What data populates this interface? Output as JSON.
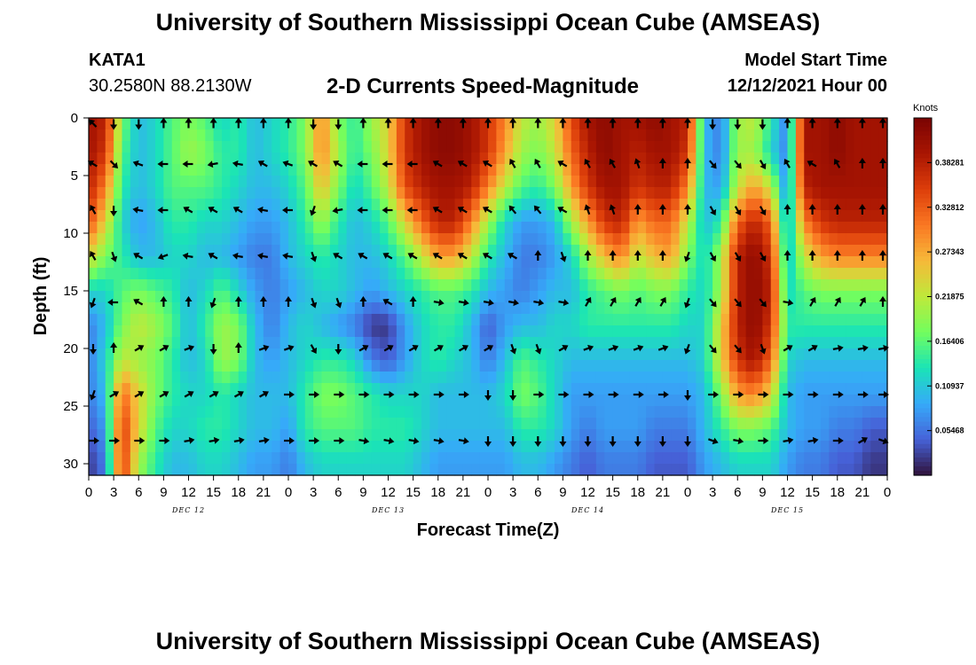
{
  "header": {
    "title": "University of Southern Mississippi Ocean Cube (AMSEAS)",
    "station": "KATA1",
    "coords": "30.2580N  88.2130W",
    "subtitle": "2-D Currents Speed-Magnitude",
    "start_label": "Model Start Time",
    "start_value": "12/12/2021 Hour 00"
  },
  "footer": {
    "title": "University of Southern Mississippi Ocean Cube (AMSEAS)"
  },
  "colors": {
    "low": "#30123b",
    "mid": "#a4fc3c",
    "high": "#7a0403"
  },
  "chart_data": {
    "type": "heatmap",
    "title": "2-D Currents Speed-Magnitude",
    "xlabel": "Forecast Time(Z)",
    "ylabel": "Depth (ft)",
    "x_ticks": [
      "0",
      "3",
      "6",
      "9",
      "12",
      "15",
      "18",
      "21",
      "0",
      "3",
      "6",
      "9",
      "12",
      "15",
      "18",
      "21",
      "0",
      "3",
      "6",
      "9",
      "12",
      "15",
      "18",
      "21",
      "0",
      "3",
      "6",
      "9",
      "12",
      "15",
      "18",
      "21",
      "0"
    ],
    "x_range_hours": [
      0,
      96
    ],
    "y_ticks": [
      0,
      5,
      10,
      15,
      20,
      25,
      30
    ],
    "y_range_ft": [
      0,
      31
    ],
    "day_labels": [
      "DEC 12",
      "DEC 13",
      "DEC 14",
      "DEC 15"
    ],
    "colorbar": {
      "unit": "Knots",
      "ticks": [
        "0.05468",
        "0.10937",
        "0.16406",
        "0.21875",
        "0.27343",
        "0.32812",
        "0.38281"
      ],
      "range": [
        0,
        0.4375
      ]
    },
    "arrow_rows_ft": [
      0.5,
      4,
      8,
      12,
      16,
      20,
      24,
      28
    ],
    "arrow_cols_hours": [
      0,
      3,
      6,
      9,
      12,
      15,
      18,
      21,
      24,
      27,
      30,
      33,
      36,
      39,
      42,
      45,
      48,
      51,
      54,
      57,
      60,
      63,
      66,
      69,
      72,
      75,
      78,
      81,
      84,
      87,
      90,
      93,
      96
    ],
    "arrow_directions_deg": [
      [
        315,
        180,
        180,
        0,
        0,
        0,
        0,
        0,
        0,
        180,
        180,
        0,
        0,
        0,
        0,
        0,
        0,
        0,
        0,
        0,
        0,
        0,
        0,
        0,
        0,
        180,
        180,
        180,
        0,
        0,
        0,
        0,
        0
      ],
      [
        300,
        135,
        290,
        270,
        270,
        260,
        280,
        300,
        290,
        300,
        300,
        270,
        270,
        270,
        300,
        300,
        300,
        330,
        330,
        300,
        330,
        330,
        340,
        0,
        0,
        140,
        140,
        150,
        330,
        300,
        330,
        0,
        0
      ],
      [
        330,
        180,
        280,
        270,
        300,
        300,
        300,
        280,
        270,
        200,
        260,
        270,
        270,
        270,
        300,
        300,
        300,
        320,
        320,
        300,
        340,
        340,
        0,
        0,
        0,
        150,
        150,
        150,
        0,
        0,
        0,
        0,
        0
      ],
      [
        330,
        160,
        300,
        250,
        280,
        300,
        280,
        280,
        280,
        160,
        300,
        300,
        300,
        300,
        300,
        300,
        300,
        300,
        0,
        160,
        0,
        0,
        0,
        0,
        200,
        150,
        150,
        150,
        0,
        0,
        0,
        0,
        0
      ],
      [
        200,
        270,
        300,
        0,
        0,
        200,
        0,
        0,
        0,
        160,
        160,
        0,
        300,
        0,
        100,
        100,
        100,
        100,
        100,
        100,
        30,
        30,
        30,
        30,
        200,
        140,
        140,
        140,
        100,
        30,
        30,
        30,
        0
      ],
      [
        180,
        0,
        60,
        60,
        70,
        180,
        0,
        70,
        70,
        150,
        180,
        60,
        60,
        60,
        60,
        60,
        60,
        160,
        160,
        60,
        70,
        70,
        70,
        70,
        200,
        140,
        140,
        160,
        60,
        60,
        80,
        80,
        80
      ],
      [
        200,
        60,
        60,
        60,
        60,
        60,
        60,
        60,
        90,
        90,
        90,
        90,
        90,
        90,
        90,
        90,
        180,
        180,
        90,
        90,
        90,
        90,
        90,
        90,
        180,
        90,
        90,
        90,
        90,
        90,
        90,
        90,
        90
      ],
      [
        90,
        90,
        90,
        90,
        80,
        80,
        80,
        80,
        90,
        90,
        90,
        100,
        100,
        100,
        100,
        100,
        180,
        180,
        180,
        180,
        180,
        180,
        180,
        180,
        180,
        110,
        100,
        90,
        80,
        80,
        90,
        60,
        110
      ]
    ],
    "speed_field": {
      "columns_hours": [
        0,
        2,
        4,
        6,
        8,
        10,
        12,
        14,
        16,
        18,
        20,
        22,
        24,
        26,
        28,
        30,
        32,
        34,
        36,
        38,
        40,
        42,
        44,
        46,
        48,
        50,
        52,
        54,
        56,
        58,
        60,
        62,
        64,
        66,
        68,
        70,
        72,
        74,
        76,
        78,
        80,
        82,
        84,
        86,
        88,
        90,
        92,
        94,
        96
      ],
      "rows_ft": [
        0,
        3,
        6,
        9,
        12,
        15,
        18,
        21,
        24,
        27,
        30
      ],
      "values_knots": [
        [
          0.4,
          0.38,
          0.18,
          0.1,
          0.12,
          0.16,
          0.18,
          0.16,
          0.12,
          0.14,
          0.1,
          0.12,
          0.14,
          0.18,
          0.3,
          0.18,
          0.14,
          0.2,
          0.24,
          0.36,
          0.4,
          0.42,
          0.42,
          0.4,
          0.36,
          0.3,
          0.22,
          0.2,
          0.24,
          0.34,
          0.4,
          0.42,
          0.4,
          0.4,
          0.42,
          0.4,
          0.38,
          0.1,
          0.06,
          0.2,
          0.22,
          0.14,
          0.06,
          0.4,
          0.4,
          0.42,
          0.4,
          0.4,
          0.4
        ],
        [
          0.4,
          0.36,
          0.16,
          0.1,
          0.12,
          0.16,
          0.2,
          0.18,
          0.14,
          0.14,
          0.1,
          0.12,
          0.14,
          0.18,
          0.3,
          0.2,
          0.14,
          0.18,
          0.24,
          0.36,
          0.4,
          0.42,
          0.42,
          0.4,
          0.36,
          0.28,
          0.2,
          0.18,
          0.22,
          0.32,
          0.38,
          0.42,
          0.4,
          0.38,
          0.4,
          0.4,
          0.36,
          0.1,
          0.06,
          0.2,
          0.2,
          0.12,
          0.06,
          0.4,
          0.4,
          0.42,
          0.4,
          0.4,
          0.4
        ],
        [
          0.38,
          0.3,
          0.14,
          0.1,
          0.12,
          0.16,
          0.16,
          0.16,
          0.14,
          0.12,
          0.1,
          0.1,
          0.12,
          0.16,
          0.26,
          0.18,
          0.12,
          0.16,
          0.22,
          0.34,
          0.38,
          0.4,
          0.4,
          0.38,
          0.3,
          0.22,
          0.16,
          0.14,
          0.18,
          0.28,
          0.36,
          0.4,
          0.4,
          0.36,
          0.38,
          0.38,
          0.3,
          0.1,
          0.08,
          0.22,
          0.28,
          0.22,
          0.06,
          0.38,
          0.4,
          0.4,
          0.4,
          0.4,
          0.4
        ],
        [
          0.34,
          0.24,
          0.12,
          0.08,
          0.1,
          0.14,
          0.14,
          0.12,
          0.12,
          0.1,
          0.08,
          0.08,
          0.1,
          0.14,
          0.2,
          0.14,
          0.1,
          0.12,
          0.16,
          0.24,
          0.32,
          0.38,
          0.38,
          0.3,
          0.2,
          0.12,
          0.08,
          0.08,
          0.1,
          0.2,
          0.28,
          0.36,
          0.38,
          0.28,
          0.32,
          0.32,
          0.22,
          0.1,
          0.14,
          0.32,
          0.38,
          0.32,
          0.08,
          0.3,
          0.36,
          0.38,
          0.38,
          0.38,
          0.38
        ],
        [
          0.24,
          0.18,
          0.14,
          0.1,
          0.1,
          0.12,
          0.12,
          0.1,
          0.1,
          0.08,
          0.06,
          0.06,
          0.1,
          0.12,
          0.14,
          0.12,
          0.1,
          0.1,
          0.12,
          0.16,
          0.22,
          0.28,
          0.28,
          0.22,
          0.14,
          0.1,
          0.06,
          0.06,
          0.08,
          0.12,
          0.2,
          0.26,
          0.3,
          0.22,
          0.26,
          0.28,
          0.18,
          0.12,
          0.2,
          0.38,
          0.42,
          0.36,
          0.1,
          0.22,
          0.28,
          0.3,
          0.3,
          0.3,
          0.3
        ],
        [
          0.12,
          0.12,
          0.16,
          0.18,
          0.16,
          0.14,
          0.1,
          0.12,
          0.16,
          0.12,
          0.08,
          0.06,
          0.08,
          0.1,
          0.12,
          0.12,
          0.1,
          0.08,
          0.1,
          0.12,
          0.14,
          0.16,
          0.16,
          0.14,
          0.1,
          0.08,
          0.06,
          0.08,
          0.1,
          0.1,
          0.14,
          0.16,
          0.18,
          0.16,
          0.18,
          0.18,
          0.14,
          0.12,
          0.2,
          0.38,
          0.42,
          0.38,
          0.12,
          0.16,
          0.18,
          0.18,
          0.18,
          0.18,
          0.18
        ],
        [
          0.06,
          0.1,
          0.18,
          0.22,
          0.2,
          0.16,
          0.1,
          0.14,
          0.2,
          0.18,
          0.1,
          0.06,
          0.1,
          0.12,
          0.1,
          0.08,
          0.06,
          0.02,
          0.02,
          0.08,
          0.12,
          0.14,
          0.14,
          0.1,
          0.04,
          0.08,
          0.1,
          0.1,
          0.12,
          0.12,
          0.14,
          0.14,
          0.14,
          0.14,
          0.14,
          0.14,
          0.12,
          0.12,
          0.24,
          0.38,
          0.42,
          0.36,
          0.14,
          0.14,
          0.14,
          0.14,
          0.14,
          0.14,
          0.14
        ],
        [
          0.06,
          0.12,
          0.22,
          0.2,
          0.18,
          0.14,
          0.1,
          0.12,
          0.2,
          0.18,
          0.1,
          0.08,
          0.1,
          0.12,
          0.14,
          0.14,
          0.12,
          0.06,
          0.04,
          0.08,
          0.12,
          0.14,
          0.12,
          0.1,
          0.06,
          0.1,
          0.16,
          0.14,
          0.12,
          0.1,
          0.1,
          0.1,
          0.1,
          0.1,
          0.1,
          0.1,
          0.1,
          0.12,
          0.24,
          0.36,
          0.4,
          0.32,
          0.12,
          0.1,
          0.1,
          0.1,
          0.1,
          0.1,
          0.1
        ],
        [
          0.06,
          0.1,
          0.32,
          0.24,
          0.18,
          0.14,
          0.12,
          0.12,
          0.14,
          0.12,
          0.1,
          0.1,
          0.1,
          0.14,
          0.18,
          0.18,
          0.16,
          0.14,
          0.12,
          0.12,
          0.12,
          0.1,
          0.1,
          0.1,
          0.1,
          0.12,
          0.18,
          0.16,
          0.12,
          0.08,
          0.08,
          0.08,
          0.08,
          0.08,
          0.08,
          0.08,
          0.08,
          0.1,
          0.18,
          0.28,
          0.3,
          0.24,
          0.1,
          0.08,
          0.08,
          0.08,
          0.08,
          0.08,
          0.08
        ],
        [
          0.04,
          0.08,
          0.36,
          0.24,
          0.16,
          0.12,
          0.12,
          0.14,
          0.14,
          0.12,
          0.1,
          0.1,
          0.08,
          0.14,
          0.16,
          0.16,
          0.16,
          0.14,
          0.14,
          0.14,
          0.12,
          0.1,
          0.1,
          0.1,
          0.1,
          0.1,
          0.14,
          0.14,
          0.12,
          0.08,
          0.06,
          0.08,
          0.08,
          0.08,
          0.06,
          0.06,
          0.06,
          0.1,
          0.14,
          0.18,
          0.18,
          0.16,
          0.1,
          0.08,
          0.08,
          0.06,
          0.06,
          0.04,
          0.04
        ],
        [
          0.02,
          0.06,
          0.36,
          0.2,
          0.14,
          0.1,
          0.1,
          0.12,
          0.12,
          0.1,
          0.08,
          0.08,
          0.06,
          0.1,
          0.12,
          0.12,
          0.12,
          0.12,
          0.12,
          0.12,
          0.1,
          0.08,
          0.08,
          0.08,
          0.08,
          0.08,
          0.1,
          0.1,
          0.08,
          0.06,
          0.04,
          0.06,
          0.06,
          0.06,
          0.04,
          0.04,
          0.04,
          0.08,
          0.1,
          0.12,
          0.12,
          0.12,
          0.08,
          0.06,
          0.06,
          0.04,
          0.04,
          0.02,
          0.02
        ]
      ]
    }
  }
}
